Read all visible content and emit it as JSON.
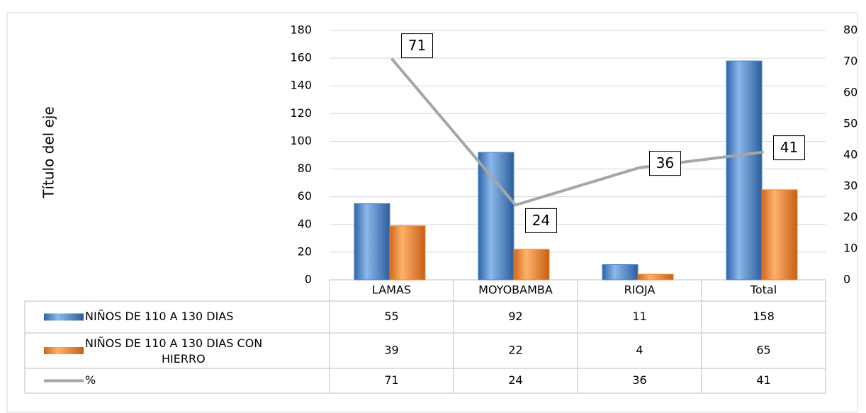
{
  "chart_data": {
    "type": "bar",
    "y_label": "Título del eje",
    "categories": [
      "LAMAS",
      "MOYOBAMBA",
      "RIOJA",
      "Total"
    ],
    "series": [
      {
        "name": "NIÑOS DE 110 A 130 DIAS",
        "color": "#4a86c8",
        "type": "bar",
        "values": [
          55,
          92,
          11,
          158
        ]
      },
      {
        "name": "NIÑOS DE 110 A 130 DIAS CON HIERRO",
        "color": "#f0862a",
        "type": "bar",
        "values": [
          39,
          22,
          4,
          65
        ]
      },
      {
        "name": "%",
        "color": "#a6a6a6",
        "type": "line",
        "axis": "y2",
        "values": [
          71,
          24,
          36,
          41
        ]
      }
    ],
    "ylim": [
      0,
      180
    ],
    "yticks": [
      0,
      20,
      40,
      60,
      80,
      100,
      120,
      140,
      160,
      180
    ],
    "y2lim": [
      0,
      80
    ],
    "y2ticks": [
      0,
      10,
      20,
      30,
      40,
      50,
      60,
      70,
      80
    ],
    "grid": true
  }
}
